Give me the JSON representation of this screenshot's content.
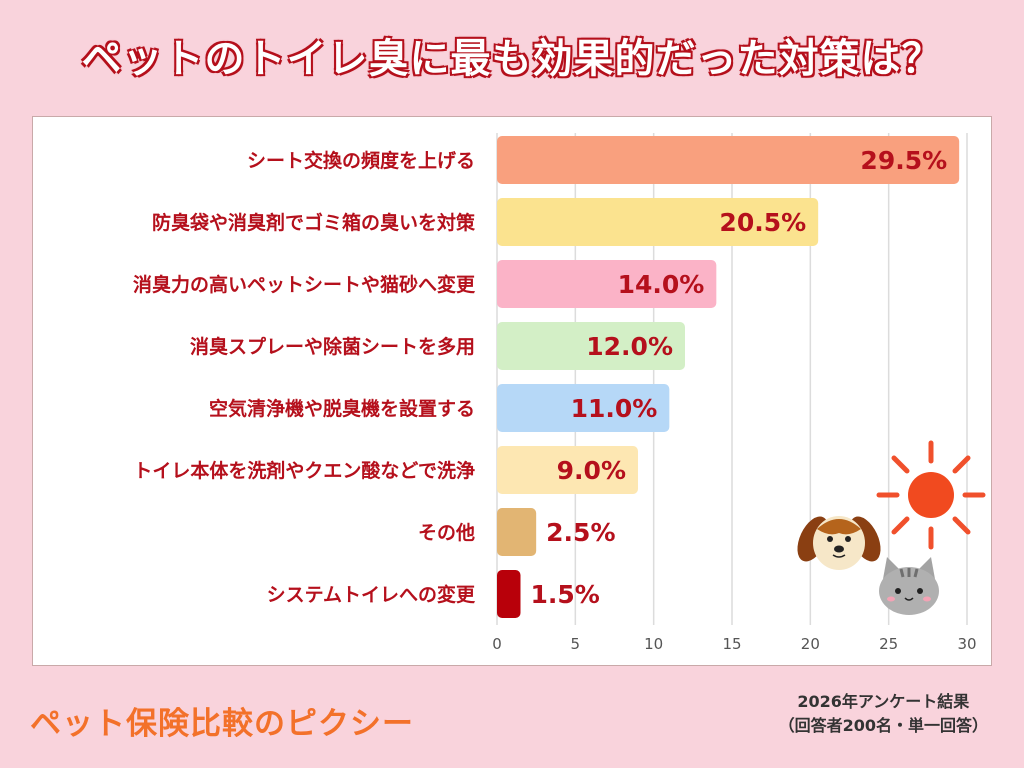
{
  "title": "ペットのトイレ臭に最も効果的だった対策は？",
  "chart_data": {
    "type": "bar",
    "orientation": "horizontal",
    "categories": [
      "シート交換の頻度を上げる",
      "防臭袋や消臭剤でゴミ箱の臭いを対策",
      "消臭力の高いペットシートや猫砂へ変更",
      "消臭スプレーや除菌シートを多用",
      "空気清浄機や脱臭機を設置する",
      "トイレ本体を洗剤やクエン酸などで洗浄",
      "その他",
      "システムトイレへの変更"
    ],
    "values": [
      29.5,
      20.5,
      14.0,
      12.0,
      11.0,
      9.0,
      2.5,
      1.5
    ],
    "value_labels": [
      "29.5%",
      "20.5%",
      "14.0%",
      "12.0%",
      "11.0%",
      "9.0%",
      "2.5%",
      "1.5%"
    ],
    "colors": [
      "#f9a07e",
      "#fbe38f",
      "#fbb3c7",
      "#d3efc6",
      "#b6d8f7",
      "#fde7b2",
      "#e2b573",
      "#b8000a"
    ],
    "xlim": [
      0,
      30
    ],
    "xticks": [
      0,
      5,
      10,
      15,
      20,
      25,
      30
    ],
    "grid": true,
    "xlabel": "",
    "ylabel": ""
  },
  "footer": {
    "brand": "ペット保険比較のピクシー",
    "note_line1": "2026年アンケート結果",
    "note_line2": "（回答者200名・単一回答）"
  },
  "illustration_icons": [
    "sun-icon",
    "dog-icon",
    "cat-icon"
  ]
}
